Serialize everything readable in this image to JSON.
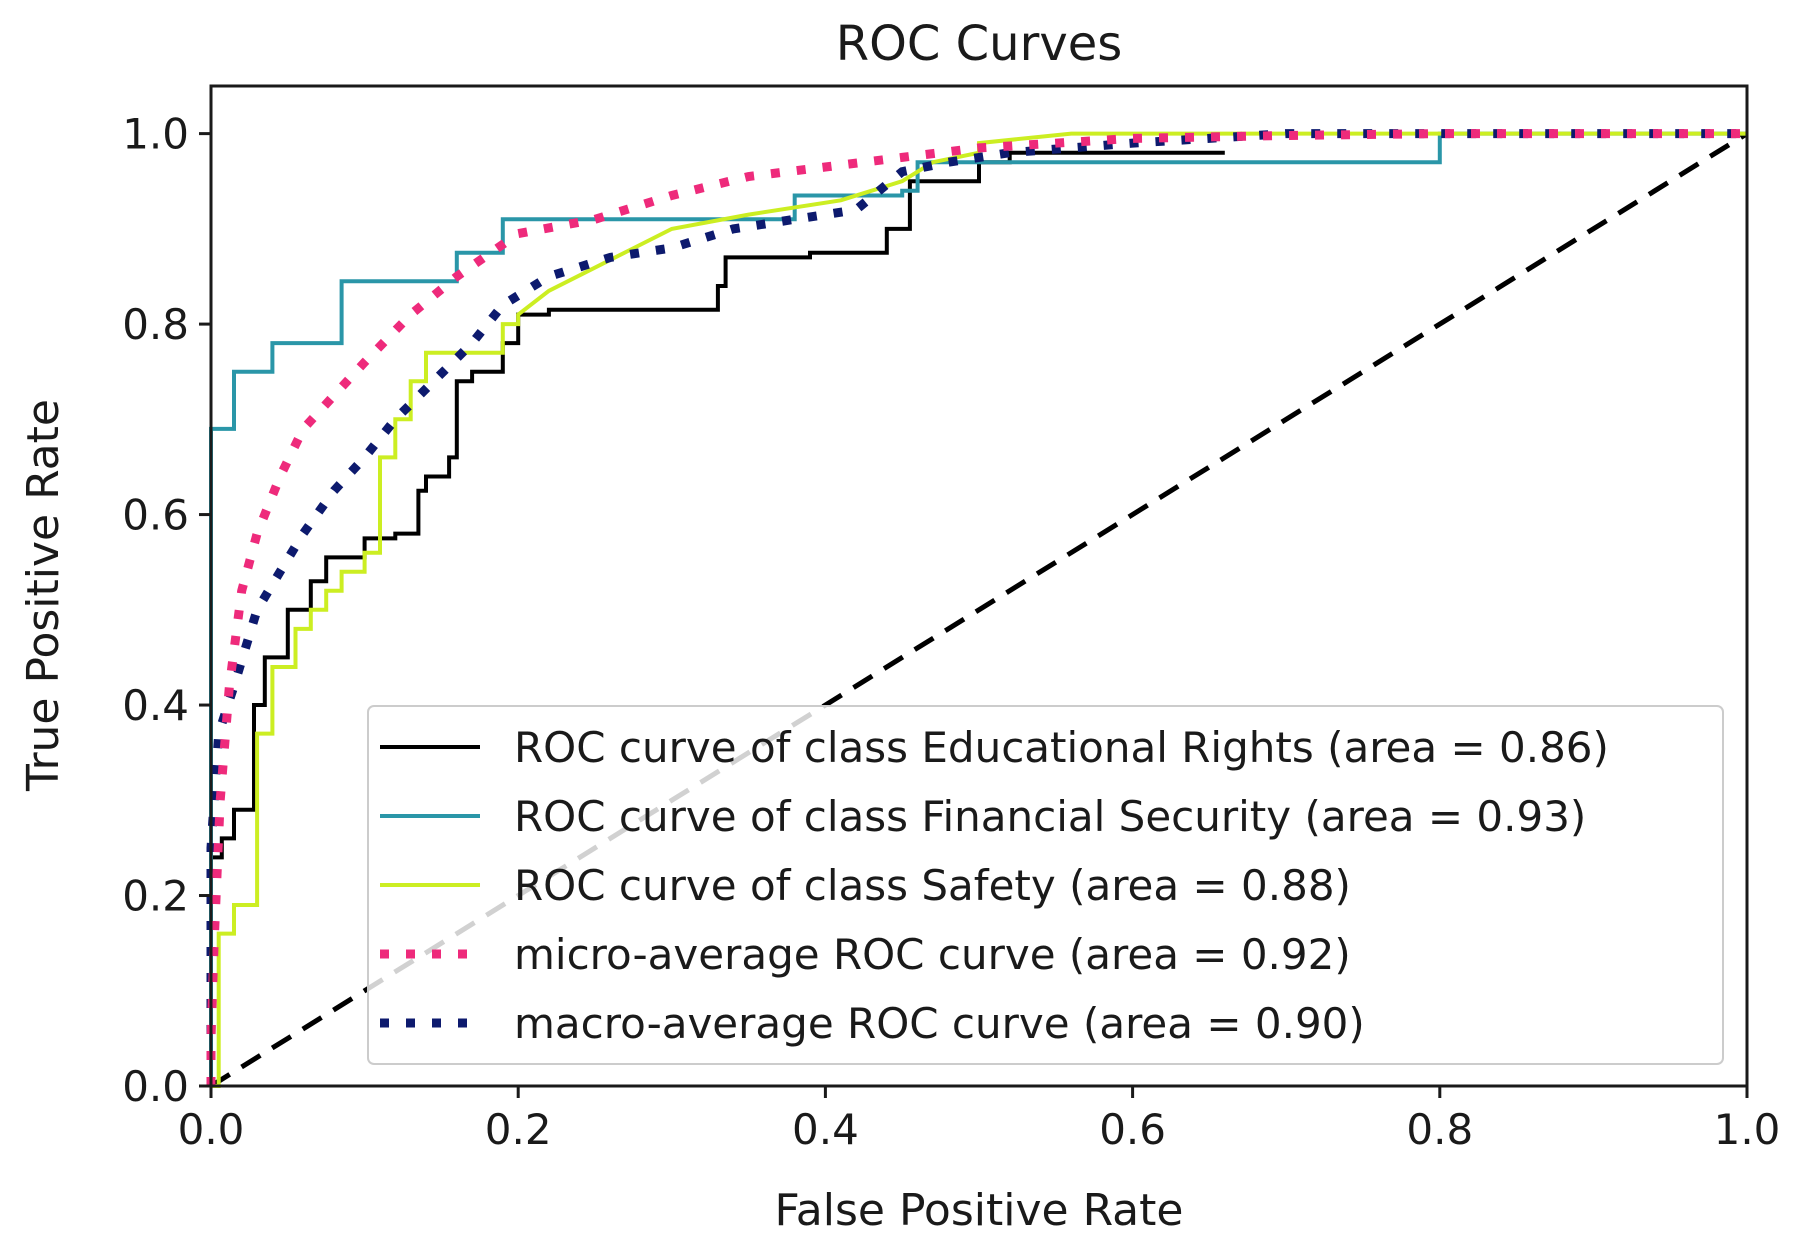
{
  "chart_data": {
    "type": "line",
    "title": "ROC Curves",
    "xlabel": "False Positive Rate",
    "ylabel": "True Positive Rate",
    "xlim": [
      0.0,
      1.0
    ],
    "ylim": [
      0.0,
      1.05
    ],
    "xticks": [
      "0.0",
      "0.2",
      "0.4",
      "0.6",
      "0.8",
      "1.0"
    ],
    "yticks": [
      "0.0",
      "0.2",
      "0.4",
      "0.6",
      "0.8",
      "1.0"
    ],
    "grid": false,
    "legend_position": "lower-right",
    "colors": {
      "educational": "#000000",
      "financial": "#2a96a8",
      "safety": "#ccee22",
      "micro": "#ee2a7b",
      "macro": "#0d1a6e",
      "chance": "#000000"
    },
    "series": [
      {
        "key": "educational",
        "name": "ROC curve of class Educational Rights (area = 0.86)",
        "style": "solid",
        "x": [
          0,
          0,
          0.007,
          0.007,
          0.015,
          0.015,
          0.028,
          0.028,
          0.035,
          0.035,
          0.05,
          0.05,
          0.065,
          0.065,
          0.075,
          0.075,
          0.1,
          0.1,
          0.12,
          0.12,
          0.135,
          0.135,
          0.14,
          0.14,
          0.155,
          0.155,
          0.16,
          0.16,
          0.17,
          0.17,
          0.19,
          0.19,
          0.2,
          0.2,
          0.22,
          0.22,
          0.33,
          0.33,
          0.335,
          0.335,
          0.39,
          0.39,
          0.44,
          0.44,
          0.455,
          0.455,
          0.5,
          0.5,
          0.52,
          0.52,
          0.66
        ],
        "y": [
          0,
          0.24,
          0.24,
          0.26,
          0.26,
          0.29,
          0.29,
          0.4,
          0.4,
          0.45,
          0.45,
          0.5,
          0.5,
          0.53,
          0.53,
          0.555,
          0.555,
          0.575,
          0.575,
          0.58,
          0.58,
          0.625,
          0.625,
          0.64,
          0.64,
          0.66,
          0.66,
          0.74,
          0.74,
          0.75,
          0.75,
          0.78,
          0.78,
          0.81,
          0.81,
          0.815,
          0.815,
          0.84,
          0.84,
          0.87,
          0.87,
          0.875,
          0.875,
          0.9,
          0.9,
          0.95,
          0.95,
          0.97,
          0.97,
          0.98,
          0.98
        ]
      },
      {
        "key": "financial",
        "name": "ROC curve of class Financial Security (area = 0.93)",
        "style": "solid",
        "x": [
          0,
          0,
          0.015,
          0.015,
          0.04,
          0.04,
          0.085,
          0.085,
          0.16,
          0.16,
          0.19,
          0.19,
          0.38,
          0.38,
          0.45,
          0.45,
          0.46,
          0.46,
          0.8,
          0.8,
          1.0
        ],
        "y": [
          0,
          0.69,
          0.69,
          0.75,
          0.75,
          0.78,
          0.78,
          0.845,
          0.845,
          0.875,
          0.875,
          0.91,
          0.91,
          0.935,
          0.935,
          0.94,
          0.94,
          0.97,
          0.97,
          1.0,
          1.0
        ]
      },
      {
        "key": "safety",
        "name": "ROC curve of class Safety (area = 0.88)",
        "style": "solid",
        "x": [
          0,
          0.005,
          0.005,
          0.015,
          0.015,
          0.03,
          0.03,
          0.04,
          0.04,
          0.055,
          0.055,
          0.065,
          0.065,
          0.075,
          0.075,
          0.085,
          0.085,
          0.1,
          0.1,
          0.11,
          0.11,
          0.12,
          0.12,
          0.13,
          0.13,
          0.14,
          0.14,
          0.19,
          0.19,
          0.2,
          0.2,
          0.22,
          0.3,
          0.35,
          0.41,
          0.45,
          0.47,
          0.5,
          0.5,
          0.56,
          1.0
        ],
        "y": [
          0,
          0,
          0.16,
          0.16,
          0.19,
          0.19,
          0.37,
          0.37,
          0.44,
          0.44,
          0.48,
          0.48,
          0.5,
          0.5,
          0.52,
          0.52,
          0.54,
          0.54,
          0.56,
          0.56,
          0.66,
          0.66,
          0.7,
          0.7,
          0.74,
          0.74,
          0.77,
          0.77,
          0.8,
          0.8,
          0.81,
          0.835,
          0.9,
          0.915,
          0.93,
          0.95,
          0.97,
          0.98,
          0.99,
          1.0,
          1.0
        ]
      },
      {
        "key": "micro",
        "name": "micro-average ROC curve (area = 0.92)",
        "style": "dotted",
        "x": [
          0,
          0,
          0.002,
          0.006,
          0.012,
          0.02,
          0.03,
          0.045,
          0.06,
          0.08,
          0.1,
          0.13,
          0.16,
          0.2,
          0.25,
          0.3,
          0.35,
          0.4,
          0.45,
          0.5,
          0.6,
          0.7,
          0.8,
          0.9,
          1.0
        ],
        "y": [
          0,
          0.05,
          0.15,
          0.3,
          0.42,
          0.52,
          0.58,
          0.64,
          0.69,
          0.725,
          0.76,
          0.81,
          0.85,
          0.895,
          0.91,
          0.935,
          0.955,
          0.965,
          0.975,
          0.985,
          0.995,
          0.998,
          1.0,
          1.0,
          1.0
        ]
      },
      {
        "key": "macro",
        "name": "macro-average ROC curve (area = 0.90)",
        "style": "dotted",
        "x": [
          0,
          0,
          0.005,
          0.015,
          0.03,
          0.045,
          0.06,
          0.08,
          0.1,
          0.12,
          0.145,
          0.17,
          0.19,
          0.22,
          0.26,
          0.3,
          0.34,
          0.38,
          0.42,
          0.45,
          0.48,
          0.52,
          0.6,
          0.7,
          0.8,
          0.9,
          1.0
        ],
        "y": [
          0,
          0.25,
          0.37,
          0.42,
          0.5,
          0.54,
          0.58,
          0.625,
          0.66,
          0.7,
          0.74,
          0.78,
          0.82,
          0.85,
          0.87,
          0.88,
          0.9,
          0.91,
          0.92,
          0.96,
          0.97,
          0.98,
          0.99,
          1.0,
          1.0,
          1.0,
          1.0
        ]
      },
      {
        "key": "chance",
        "name": "",
        "style": "dashed",
        "x": [
          0,
          1
        ],
        "y": [
          0,
          1
        ]
      }
    ]
  }
}
